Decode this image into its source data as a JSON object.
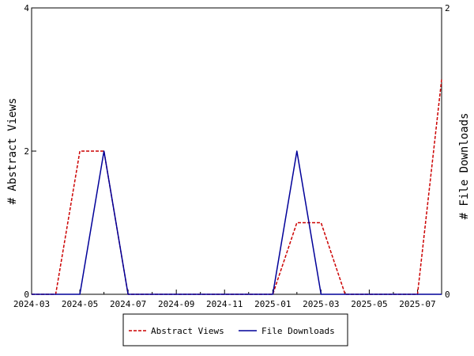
{
  "chart_data": {
    "type": "line",
    "x": [
      "2024-03",
      "2024-04",
      "2024-05",
      "2024-06",
      "2024-07",
      "2024-08",
      "2024-09",
      "2024-10",
      "2024-11",
      "2024-12",
      "2025-01",
      "2025-02",
      "2025-03",
      "2025-04",
      "2025-05",
      "2025-06",
      "2025-07",
      "2025-08"
    ],
    "x_ticks": [
      "2024-03",
      "2024-05",
      "2024-07",
      "2024-09",
      "2024-11",
      "2025-01",
      "2025-03",
      "2025-05",
      "2025-07"
    ],
    "series": [
      {
        "name": "Abstract Views",
        "axis": "left",
        "color": "#cc0000",
        "style": "dashed",
        "values": [
          0,
          0,
          2,
          2,
          0,
          0,
          0,
          0,
          0,
          0,
          0,
          1,
          1,
          0,
          0,
          0,
          0,
          3
        ]
      },
      {
        "name": "File Downloads",
        "axis": "right",
        "color": "#000099",
        "style": "solid",
        "values": [
          0,
          0,
          0,
          1,
          0,
          0,
          0,
          0,
          0,
          0,
          0,
          1,
          0,
          0,
          0,
          0,
          0,
          0
        ]
      }
    ],
    "ylabel": "# Abstract Views",
    "ylabel_right": "# File Downloads",
    "ylim": [
      0,
      4
    ],
    "ylim_right": [
      0,
      2
    ],
    "y_ticks": [
      "0",
      "2",
      "4"
    ],
    "y_ticks_right": [
      "0",
      "2"
    ],
    "grid": false,
    "legend_position": "bottom"
  }
}
